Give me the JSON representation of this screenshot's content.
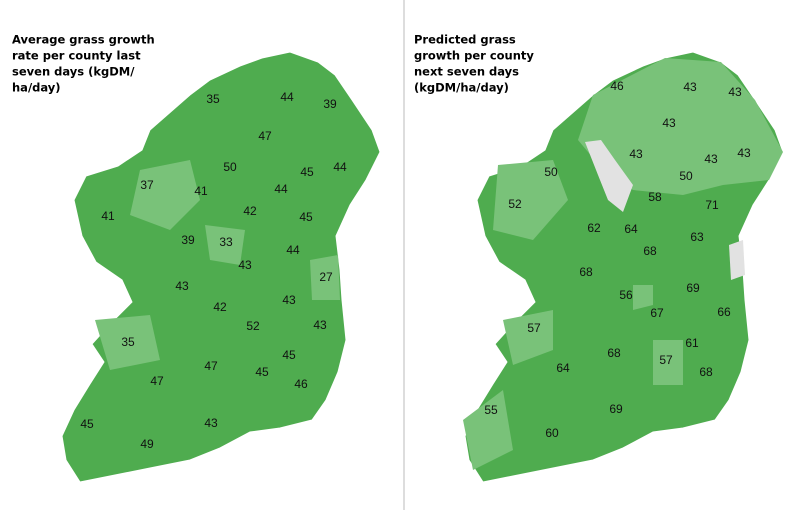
{
  "maps": [
    {
      "title": [
        "Average grass growth",
        "rate per county last",
        "seven days (kgDM/",
        "ha/day)"
      ],
      "counties": [
        35,
        44,
        39,
        47,
        50,
        44,
        45,
        37,
        41,
        44,
        42,
        45,
        41,
        39,
        33,
        43,
        44,
        27,
        43,
        43,
        42,
        52,
        43,
        35,
        47,
        45,
        45,
        46,
        47,
        45,
        43,
        49
      ]
    },
    {
      "title": [
        "Predicted grass",
        "growth per county",
        "next seven days",
        "(kgDM/ha/day)"
      ],
      "counties": [
        46,
        43,
        43,
        43,
        43,
        43,
        43,
        50,
        50,
        52,
        58,
        71,
        62,
        64,
        63,
        68,
        68,
        69,
        56,
        67,
        66,
        57,
        61,
        68,
        57,
        68,
        64,
        69,
        55,
        60
      ]
    }
  ]
}
